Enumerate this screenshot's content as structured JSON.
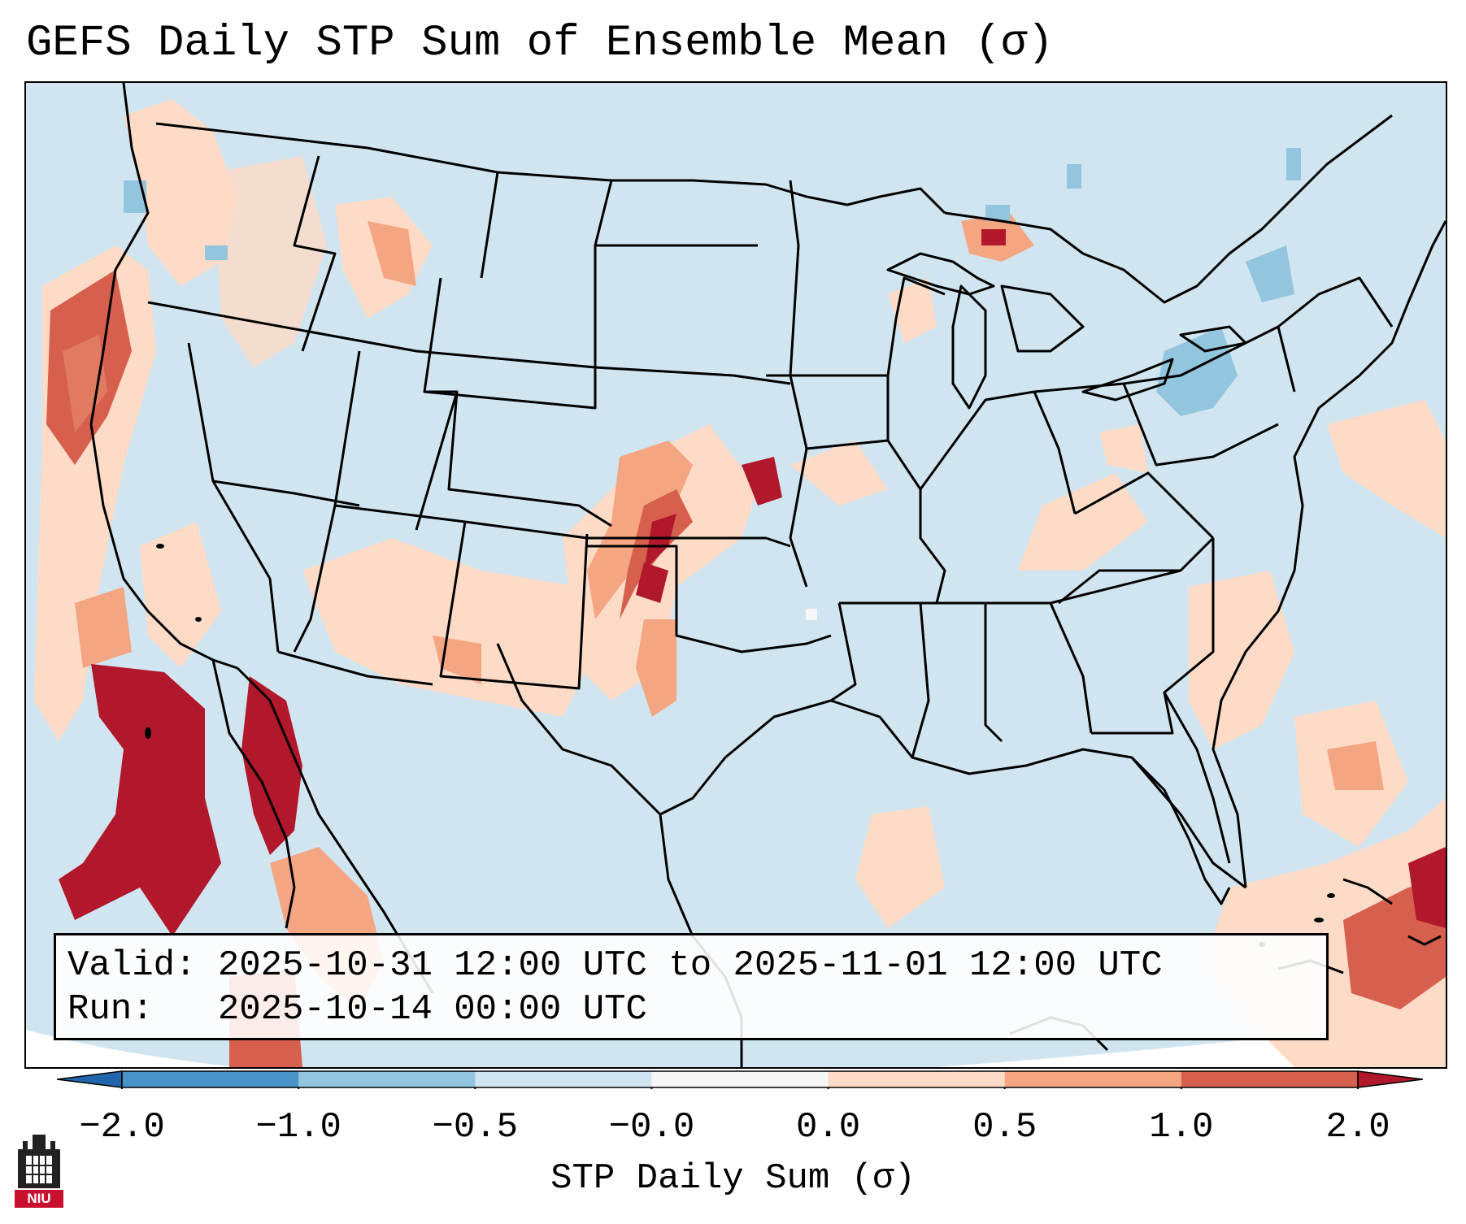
{
  "title": "GEFS Daily STP Sum of Ensemble Mean (σ)",
  "info": {
    "valid_line": "Valid: 2025-10-31 12:00 UTC to 2025-11-01 12:00 UTC",
    "run_line": "Run:   2025-10-14 00:00 UTC"
  },
  "colorbar": {
    "label": "STP Daily Sum (σ)",
    "tick_labels": [
      "−2.0",
      "−1.0",
      "−0.5",
      "−0.0",
      "0.0",
      "0.5",
      "1.0",
      "2.0"
    ],
    "bins": [
      {
        "from": -2.0,
        "to": -1.0,
        "color": "#4a93c6"
      },
      {
        "from": -1.0,
        "to": -0.5,
        "color": "#92c5de"
      },
      {
        "from": -0.5,
        "to": -0.0,
        "color": "#d1e5f0"
      },
      {
        "from": -0.0,
        "to": 0.0,
        "color": "#f7f7f7"
      },
      {
        "from": 0.0,
        "to": 0.5,
        "color": "#fddbc7"
      },
      {
        "from": 0.5,
        "to": 1.0,
        "color": "#f4a582"
      },
      {
        "from": 1.0,
        "to": 2.0,
        "color": "#d6604d"
      }
    ],
    "extend_low_color": "#2166ac",
    "extend_high_color": "#b2182b"
  },
  "logo": {
    "text": "NIU",
    "icon": "niu-logo-icon"
  },
  "colors": {
    "background_field": "#d1e5f0",
    "light_positive": "#fddbc7",
    "medium_positive": "#f4a582",
    "strong_positive": "#d6604d",
    "extreme_positive": "#b2182b",
    "negative": "#92c5de"
  }
}
